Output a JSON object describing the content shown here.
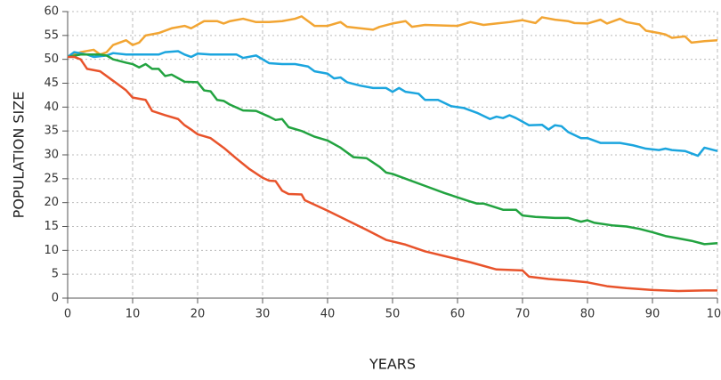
{
  "chart_data": {
    "type": "line",
    "x_label": "YEARS",
    "y_label": "POPULATION SIZE",
    "xlim": [
      0,
      100
    ],
    "xticks": [
      0,
      10,
      20,
      30,
      40,
      50,
      60,
      70,
      80,
      90,
      100
    ],
    "ylim": [
      0,
      60
    ],
    "yticks": [
      0,
      5,
      10,
      15,
      20,
      25,
      30,
      35,
      40,
      45,
      50,
      55,
      60
    ],
    "grid": true,
    "series": [
      {
        "color": "#f2a533",
        "x": [
          0,
          2,
          4,
          5,
          6,
          7,
          9,
          10,
          11,
          12,
          14,
          16,
          18,
          19,
          21,
          23,
          24,
          25,
          27,
          29,
          31,
          33,
          35,
          36,
          37,
          38,
          40,
          42,
          43,
          45,
          47,
          48,
          50,
          52,
          53,
          55,
          60,
          62,
          64,
          66,
          68,
          70,
          72,
          73,
          75,
          77,
          78,
          80,
          82,
          83,
          85,
          86,
          88,
          89,
          91,
          92,
          93,
          95,
          96,
          98,
          100
        ],
        "values": [
          50.5,
          51.5,
          52,
          51,
          51.5,
          53,
          54,
          53,
          53.5,
          55,
          55.5,
          56.5,
          57,
          56.5,
          58,
          58,
          57.5,
          58,
          58.5,
          57.8,
          57.8,
          58,
          58.5,
          59,
          58,
          57,
          57,
          57.8,
          56.8,
          56.5,
          56.2,
          56.8,
          57.5,
          58,
          56.8,
          57.2,
          57,
          57.8,
          57.2,
          57.5,
          57.8,
          58.2,
          57.6,
          58.8,
          58.3,
          58,
          57.6,
          57.5,
          58.3,
          57.5,
          58.5,
          57.8,
          57.3,
          56,
          55.5,
          55.2,
          54.5,
          54.8,
          53.5,
          53.8,
          54
        ]
      },
      {
        "color": "#1ba5de",
        "x": [
          0,
          1,
          3,
          4,
          6,
          7,
          9,
          10,
          12,
          14,
          15,
          17,
          18,
          19,
          20,
          22,
          26,
          27,
          29,
          31,
          33,
          35,
          37,
          38,
          40,
          41,
          42,
          43,
          45,
          47,
          49,
          50,
          51,
          52,
          54,
          55,
          57,
          59,
          61,
          63,
          65,
          66,
          67,
          68,
          69,
          71,
          73,
          74,
          75,
          76,
          77,
          79,
          80,
          82,
          85,
          87,
          89,
          91,
          92,
          93,
          95,
          97,
          98,
          100
        ],
        "values": [
          50.5,
          51.5,
          51,
          50.5,
          50.8,
          51.3,
          51,
          51,
          51,
          51,
          51.5,
          51.7,
          51,
          50.5,
          51.2,
          51,
          51,
          50.3,
          50.8,
          49.2,
          49,
          49,
          48.5,
          47.5,
          47,
          46,
          46.2,
          45.2,
          44.5,
          44,
          44,
          43.2,
          44,
          43.2,
          42.8,
          41.5,
          41.5,
          40.2,
          39.8,
          38.8,
          37.5,
          38,
          37.7,
          38.3,
          37.7,
          36.2,
          36.3,
          35.3,
          36.2,
          36,
          34.8,
          33.5,
          33.5,
          32.5,
          32.5,
          32,
          31.3,
          31,
          31.3,
          31,
          30.8,
          29.8,
          31.5,
          30.8
        ]
      },
      {
        "color": "#22a340",
        "x": [
          0,
          2,
          4,
          5,
          6,
          7,
          9,
          10,
          11,
          12,
          13,
          14,
          15,
          16,
          18,
          20,
          21,
          22,
          23,
          24,
          25,
          27,
          29,
          31,
          32,
          33,
          34,
          36,
          38,
          40,
          42,
          44,
          46,
          48,
          49,
          50,
          52,
          55,
          58,
          62,
          63,
          64,
          67,
          69,
          70,
          72,
          75,
          77,
          79,
          80,
          81,
          84,
          86,
          88,
          90,
          92,
          94,
          96,
          98,
          100
        ],
        "values": [
          50.5,
          51,
          51,
          51,
          50.8,
          50,
          49.3,
          49,
          48.3,
          49,
          48,
          48,
          46.5,
          46.8,
          45.3,
          45.2,
          43.5,
          43.3,
          41.5,
          41.3,
          40.5,
          39.3,
          39.2,
          38,
          37.3,
          37.5,
          35.8,
          35,
          33.8,
          33,
          31.5,
          29.5,
          29.3,
          27.5,
          26.3,
          26,
          25,
          23.5,
          22,
          20.2,
          19.8,
          19.8,
          18.5,
          18.5,
          17.3,
          17,
          16.8,
          16.8,
          16,
          16.3,
          15.8,
          15.2,
          15,
          14.5,
          13.8,
          13,
          12.5,
          12,
          11.3,
          11.5
        ]
      },
      {
        "color": "#e8532b",
        "x": [
          0,
          1,
          2,
          3,
          5,
          7,
          9,
          10,
          12,
          13,
          15,
          17,
          18,
          19,
          20,
          22,
          24,
          26,
          28,
          30,
          31,
          32,
          33,
          34,
          36,
          36.5,
          40,
          43,
          46,
          49,
          52,
          55,
          58,
          62,
          66,
          70,
          71,
          74,
          77,
          80,
          83,
          86,
          90,
          94,
          98,
          100
        ],
        "values": [
          50.5,
          50.5,
          50,
          48,
          47.5,
          45.5,
          43.5,
          42,
          41.5,
          39.2,
          38.3,
          37.5,
          36.2,
          35.3,
          34.3,
          33.5,
          31.5,
          29.2,
          27,
          25.2,
          24.6,
          24.5,
          22.5,
          21.8,
          21.7,
          20.5,
          18.3,
          16.3,
          14.3,
          12.2,
          11.2,
          9.8,
          8.8,
          7.5,
          6,
          5.8,
          4.5,
          4,
          3.7,
          3.3,
          2.5,
          2.1,
          1.7,
          1.5,
          1.6,
          1.6
        ]
      }
    ]
  }
}
